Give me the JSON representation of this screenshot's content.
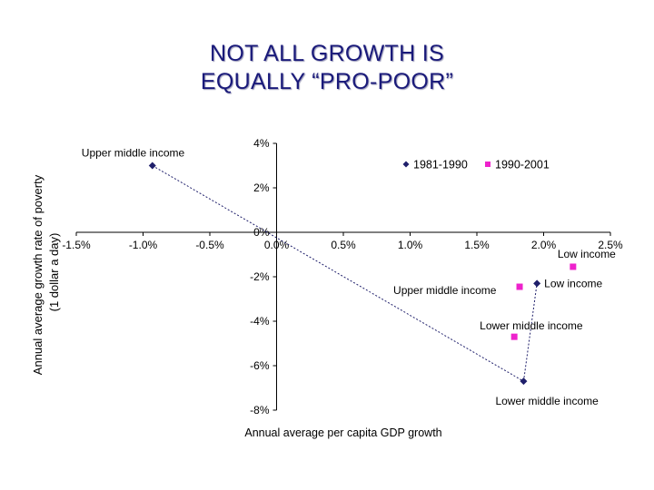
{
  "slide": {
    "title_line1": "NOT ALL GROWTH IS",
    "title_line2": "EQUALLY “PRO-POOR”"
  },
  "chart_data": {
    "type": "scatter",
    "title": "",
    "xlabel": "Annual average per capita GDP growth",
    "ylabel_line1": "Annual average growth rate of poverty",
    "ylabel_line2": "(1 dollar a day)",
    "xlim": [
      -1.5,
      2.5
    ],
    "ylim": [
      -8,
      4
    ],
    "x_ticks": [
      -1.5,
      -1.0,
      -0.5,
      0.0,
      0.5,
      1.0,
      1.5,
      2.0,
      2.5
    ],
    "x_tick_labels": [
      "-1.5%",
      "-1.0%",
      "-0.5%",
      "0.0%",
      "0.5%",
      "1.0%",
      "1.5%",
      "2.0%",
      "2.5%"
    ],
    "y_ticks": [
      4,
      2,
      0,
      -2,
      -4,
      -6,
      -8
    ],
    "y_tick_labels": [
      "4%",
      "2%",
      "0%",
      "-2%",
      "-4%",
      "-6%",
      "-8%"
    ],
    "grid": false,
    "legend_position": "top-right",
    "series": [
      {
        "name": "1981-1990",
        "marker": "diamond",
        "color": "#1f1f6b",
        "points": [
          {
            "x": -0.93,
            "y": 3.0,
            "label": "Upper middle income"
          },
          {
            "x": 1.95,
            "y": -2.3,
            "label": "Low income"
          },
          {
            "x": 1.85,
            "y": -6.7,
            "label": "Lower middle income"
          }
        ]
      },
      {
        "name": "1990-2001",
        "marker": "square",
        "color": "#ee22cc",
        "points": [
          {
            "x": 1.82,
            "y": -2.45,
            "label": "Upper middle income"
          },
          {
            "x": 2.22,
            "y": -1.55,
            "label": "Low income"
          },
          {
            "x": 1.78,
            "y": -4.7,
            "label": "Lower middle income"
          }
        ]
      }
    ],
    "connector_line": {
      "style": "dotted",
      "color": "#1f1f6b"
    }
  }
}
